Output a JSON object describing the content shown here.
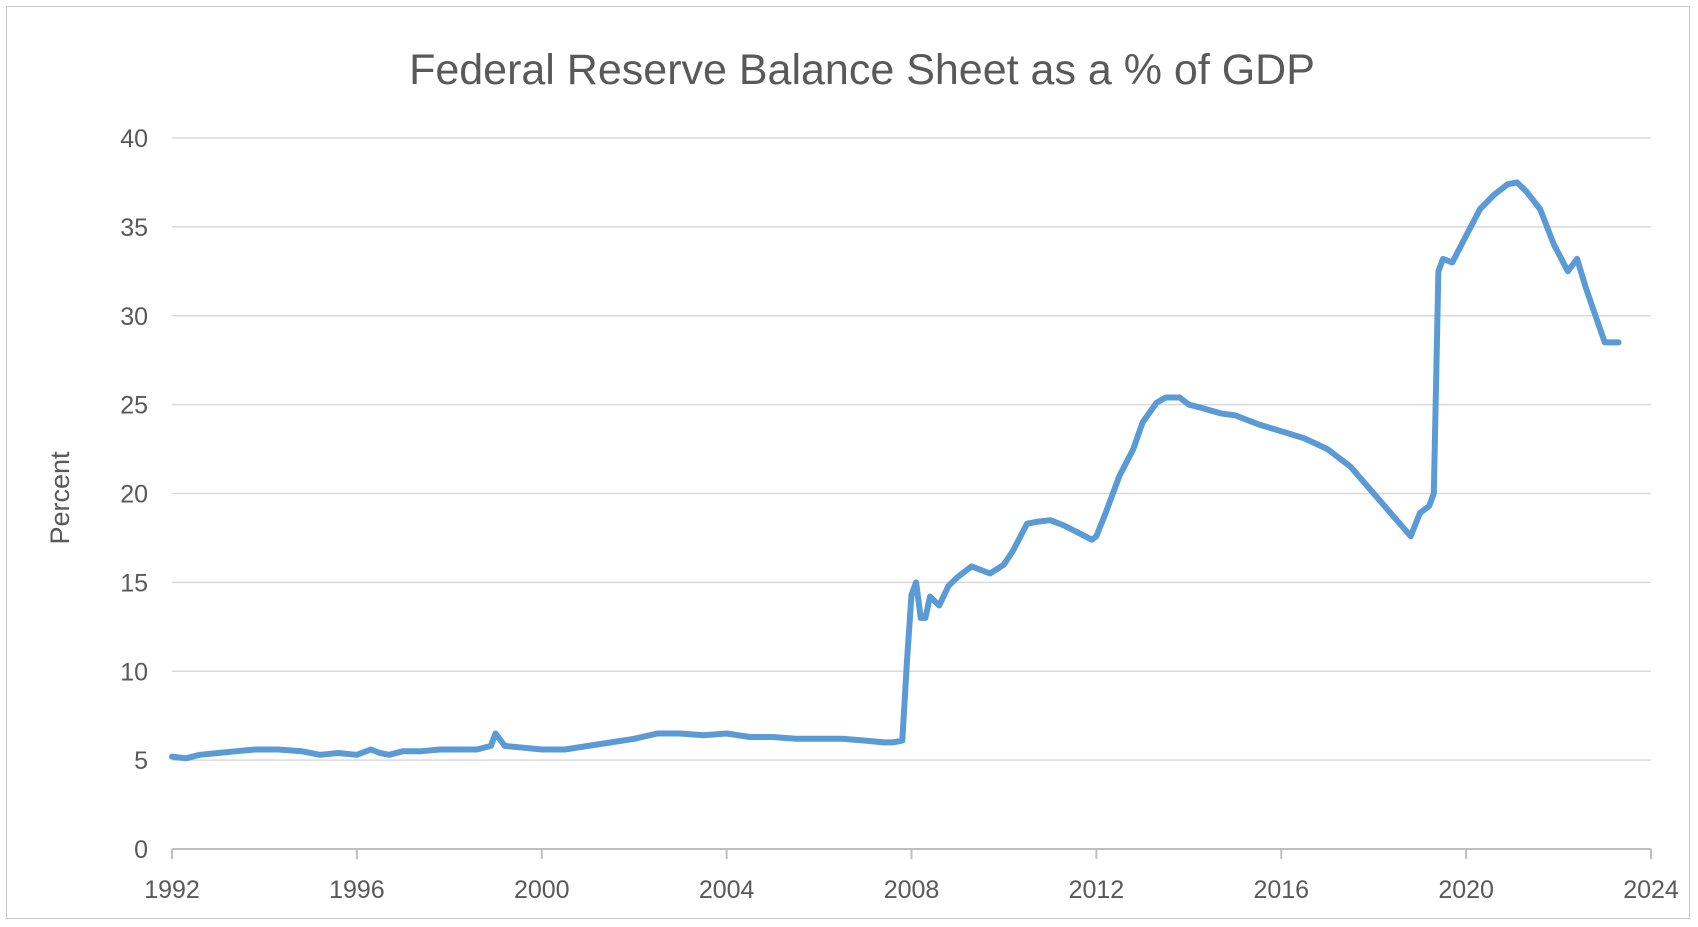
{
  "chart_data": {
    "type": "line",
    "title": "Federal Reserve Balance Sheet as a % of GDP",
    "xlabel": "",
    "ylabel": "Percent",
    "xlim": [
      1992,
      2024
    ],
    "ylim": [
      0,
      40
    ],
    "x_ticks": [
      "1992",
      "1996",
      "2000",
      "2004",
      "2008",
      "2012",
      "2016",
      "2020",
      "2024"
    ],
    "y_ticks": [
      "0",
      "5",
      "10",
      "15",
      "20",
      "25",
      "30",
      "35",
      "40"
    ],
    "grid": "horizontal",
    "legend": "none",
    "color": "#5b9bd5",
    "series": [
      {
        "x": [
          1992.0,
          1992.3,
          1992.6,
          1993.0,
          1993.4,
          1993.8,
          1994.3,
          1994.8,
          1995.2,
          1995.6,
          1996.0,
          1996.3,
          1996.5,
          1996.7,
          1997.0,
          1997.4,
          1997.8,
          1998.2,
          1998.6,
          1998.9,
          1999.0,
          1999.2,
          1999.6,
          2000.0,
          2000.5,
          2001.0,
          2001.5,
          2002.0,
          2002.5,
          2003.0,
          2003.5,
          2004.0,
          2004.5,
          2005.0,
          2005.5,
          2006.0,
          2006.5,
          2007.0,
          2007.4,
          2007.6,
          2007.8,
          2007.9,
          2008.0,
          2008.1,
          2008.2,
          2008.3,
          2008.4,
          2008.6,
          2008.8,
          2009.0,
          2009.3,
          2009.7,
          2010.0,
          2010.2,
          2010.5,
          2010.7,
          2011.0,
          2011.3,
          2011.6,
          2011.9,
          2012.0,
          2012.2,
          2012.5,
          2012.8,
          2013.0,
          2013.3,
          2013.5,
          2013.8,
          2014.0,
          2014.3,
          2014.7,
          2015.0,
          2015.5,
          2016.0,
          2016.5,
          2017.0,
          2017.5,
          2018.0,
          2018.5,
          2018.8,
          2019.0,
          2019.2,
          2019.3,
          2019.4,
          2019.5,
          2019.7,
          2020.0,
          2020.3,
          2020.6,
          2020.9,
          2021.1,
          2021.3,
          2021.6,
          2021.9,
          2022.0,
          2022.2,
          2022.4,
          2022.6,
          2022.8,
          2023.0,
          2023.3
        ],
        "values": [
          5.2,
          5.1,
          5.3,
          5.4,
          5.5,
          5.6,
          5.6,
          5.5,
          5.3,
          5.4,
          5.3,
          5.6,
          5.4,
          5.3,
          5.5,
          5.5,
          5.6,
          5.6,
          5.6,
          5.8,
          6.5,
          5.8,
          5.7,
          5.6,
          5.6,
          5.8,
          6.0,
          6.2,
          6.5,
          6.5,
          6.4,
          6.5,
          6.3,
          6.3,
          6.2,
          6.2,
          6.2,
          6.1,
          6.0,
          6.0,
          6.1,
          10.5,
          14.3,
          15.0,
          13.0,
          13.0,
          14.2,
          13.7,
          14.8,
          15.3,
          15.9,
          15.5,
          16.0,
          16.8,
          18.3,
          18.4,
          18.5,
          18.2,
          17.8,
          17.4,
          17.6,
          18.9,
          21.0,
          22.5,
          24.0,
          25.1,
          25.4,
          25.4,
          25.0,
          24.8,
          24.5,
          24.4,
          23.9,
          23.5,
          23.1,
          22.5,
          21.5,
          20.0,
          18.5,
          17.6,
          18.9,
          19.3,
          20.0,
          32.5,
          33.2,
          33.0,
          34.5,
          36.0,
          36.8,
          37.4,
          37.5,
          37.0,
          36.0,
          34.0,
          33.5,
          32.5,
          33.2,
          31.5,
          30.0,
          28.5,
          28.5
        ]
      }
    ]
  }
}
